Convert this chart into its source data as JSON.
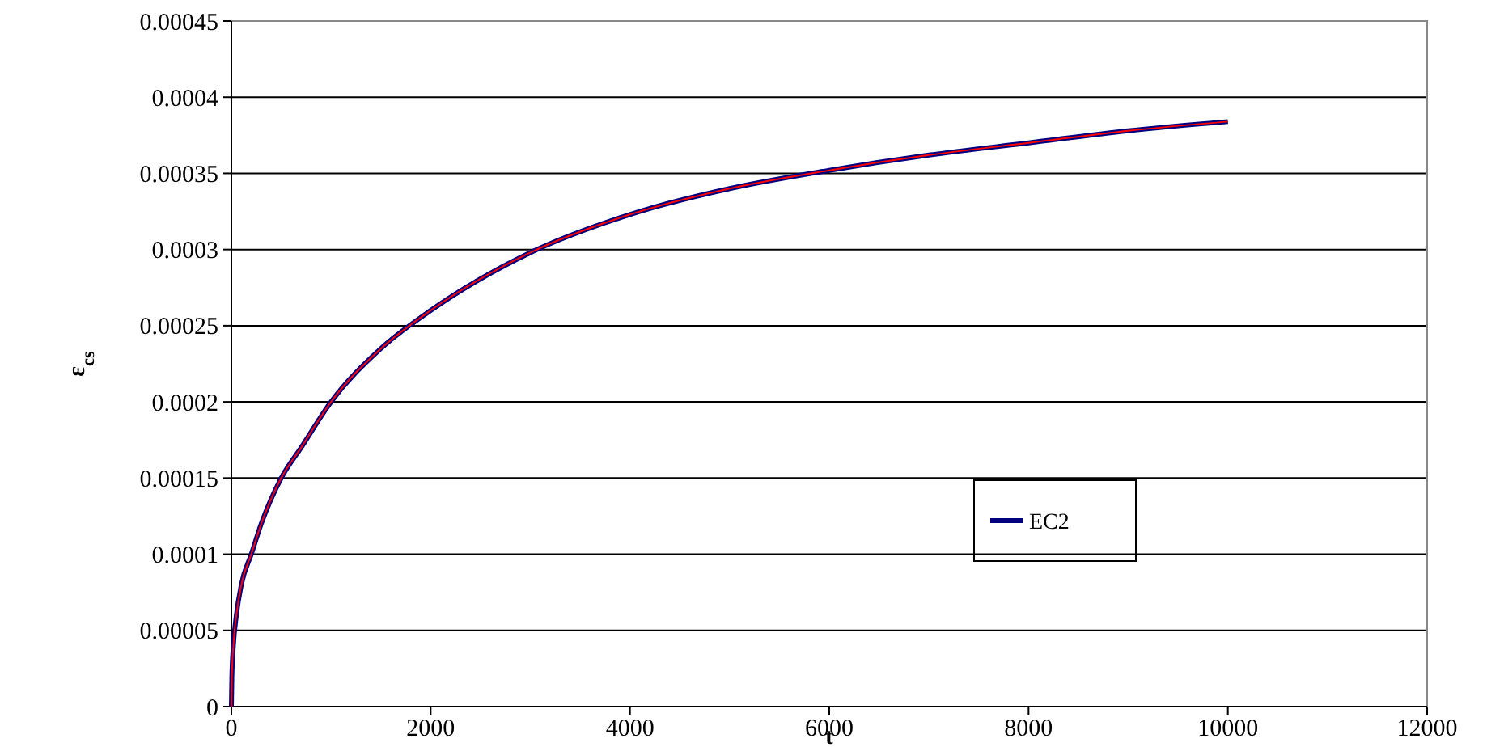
{
  "chart_data": {
    "type": "line",
    "xlabel": "t",
    "ylabel": "ε$_{cs}$",
    "xlim": [
      0,
      12000
    ],
    "xticks": [
      0,
      2000,
      4000,
      6000,
      8000,
      10000,
      12000
    ],
    "ylim": [
      0,
      0.00045
    ],
    "yticks": [
      0,
      {
        "value": 5e-05,
        "label": "0.00005"
      },
      0.0001,
      0.00015,
      0.0002,
      0.00025,
      0.0003,
      0.00035,
      0.0004,
      0.00045
    ],
    "grid": "y",
    "legend": "bottom right",
    "x": [
      0,
      5,
      20,
      50,
      100,
      200,
      300,
      500,
      700,
      1000,
      1500,
      2000,
      3000,
      4000,
      5000,
      6000,
      7000,
      8000,
      9000,
      10000
    ],
    "series": [
      {
        "name": "EC2",
        "color": "#000080",
        "values": [
          0,
          2e-05,
          4e-05,
          6e-05,
          8e-05,
          0.0001,
          0.00012,
          0.00015,
          0.00017,
          0.0002,
          0.000235,
          0.00026,
          0.000298,
          0.000323,
          0.00034,
          0.000352,
          0.000362,
          0.00037,
          0.000378,
          0.000384
        ]
      },
      {
        "color": "#ff0000",
        "values": [
          0,
          2e-05,
          4e-05,
          6e-05,
          8e-05,
          0.0001,
          0.00012,
          0.00015,
          0.00017,
          0.0002,
          0.000235,
          0.00026,
          0.000298,
          0.000323,
          0.00034,
          0.000352,
          0.000362,
          0.00037,
          0.000378,
          0.000384
        ]
      }
    ]
  }
}
